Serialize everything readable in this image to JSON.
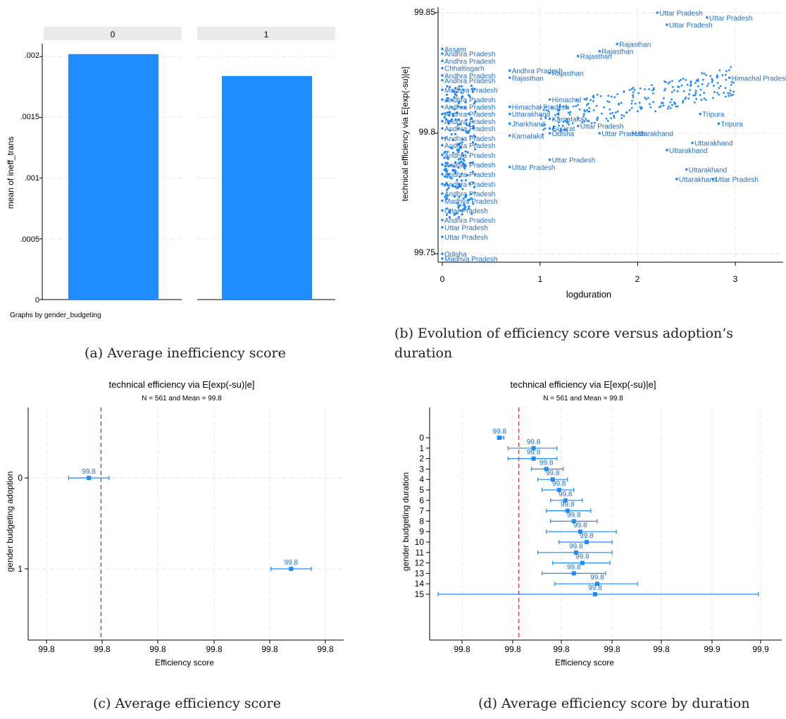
{
  "colors": {
    "bar": "#1e8bff",
    "point": "#1e8bff",
    "text": "#1f6fd6",
    "refline": "#e03030",
    "grid": "#e6e6e6",
    "axis": "#000000",
    "strip": "#ebebeb"
  },
  "captions": {
    "a": "(a) Average inefficiency score",
    "b1": "(b) Evolution of efficiency score versus adoption’s",
    "b2": "duration",
    "c": "(c) Average efficiency score",
    "d": "(d) Average efficiency score by duration"
  },
  "panel_a": {
    "ylabel": "mean of ineff_trans",
    "note": "Graphs by gender_budgeting",
    "strip_labels": [
      "0",
      "1"
    ],
    "yticks": [
      "0",
      ".0005",
      ".001",
      ".0015",
      ".002"
    ]
  },
  "panel_b": {
    "xlabel": "logduration",
    "ylabel": "technical efficiency via E[exp(-su)|e]",
    "xticks": [
      "0",
      "1",
      "2",
      "3"
    ],
    "yticks": [
      "99.75",
      "99.8",
      "99.85"
    ]
  },
  "panel_c": {
    "title": "technical efficiency via E[exp(-su)|e]",
    "subtitle": "N = 561 and Mean = 99.8",
    "xlabel": "Efficiency score",
    "ylabel": "gender budgeting adoption",
    "xticks": [
      "99.8",
      "99.8",
      "99.8",
      "99.8",
      "99.8",
      "99.8",
      "99.8",
      "99.8"
    ],
    "point_label": "99.8"
  },
  "panel_d": {
    "title": "technical efficiency via E[exp(-su)|e]",
    "subtitle": "N = 561 and Mean = 99.8",
    "xlabel": "Efficiency score",
    "ylabel": "gender budgeting duration",
    "xticks": [
      "99.8",
      "99.8",
      "99.8",
      "99.8",
      "99.8",
      "99.9",
      "99.9",
      "99.9"
    ],
    "point_label": "99.8"
  },
  "chart_data": [
    {
      "type": "bar",
      "categories": [
        "0",
        "1"
      ],
      "values": [
        0.00202,
        0.00184
      ],
      "ylabel": "mean of ineff_trans",
      "ylim": [
        0,
        0.0021
      ],
      "grid": true
    },
    {
      "type": "scatter",
      "xlabel": "logduration",
      "ylabel": "technical efficiency via E[exp(-su)|e]",
      "xlim": [
        0,
        3
      ],
      "ylim": [
        99.748,
        99.851
      ],
      "grid": true,
      "points": [
        {
          "x": 0.0,
          "y": 99.835,
          "label": "Assam"
        },
        {
          "x": 0.0,
          "y": 99.833,
          "label": "Andhra Pradesh"
        },
        {
          "x": 0.0,
          "y": 99.83,
          "label": "Andhra Pradesh"
        },
        {
          "x": 0.0,
          "y": 99.827,
          "label": "Chhattisgarh"
        },
        {
          "x": 0.0,
          "y": 99.824,
          "label": "Andhra Pradesh"
        },
        {
          "x": 0.0,
          "y": 99.822,
          "label": "Andhra Pradesh"
        },
        {
          "x": 0.0,
          "y": 99.818,
          "label": "Madhya Pradesh"
        },
        {
          "x": 0.0,
          "y": 99.814,
          "label": "Andhra Pradesh"
        },
        {
          "x": 0.0,
          "y": 99.811,
          "label": "Andhra Pradesh"
        },
        {
          "x": 0.0,
          "y": 99.808,
          "label": "Andhra Pradesh"
        },
        {
          "x": 0.0,
          "y": 99.805,
          "label": "Andhra Pradesh"
        },
        {
          "x": 0.0,
          "y": 99.802,
          "label": "Andhra Pradesh"
        },
        {
          "x": 0.0,
          "y": 99.798,
          "label": "Andhra Pradesh"
        },
        {
          "x": 0.0,
          "y": 99.795,
          "label": "Andhra Pradesh"
        },
        {
          "x": 0.0,
          "y": 99.791,
          "label": "Andhra Pradesh"
        },
        {
          "x": 0.0,
          "y": 99.787,
          "label": "Andhra Pradesh"
        },
        {
          "x": 0.0,
          "y": 99.783,
          "label": "Andhra Pradesh"
        },
        {
          "x": 0.0,
          "y": 99.779,
          "label": "Andhra Pradesh"
        },
        {
          "x": 0.0,
          "y": 99.775,
          "label": "Andhra Pradesh"
        },
        {
          "x": 0.0,
          "y": 99.772,
          "label": "Madhya Pradesh"
        },
        {
          "x": 0.0,
          "y": 99.768,
          "label": "Uttar Pradesh"
        },
        {
          "x": 0.0,
          "y": 99.764,
          "label": "Andhra Pradesh"
        },
        {
          "x": 0.0,
          "y": 99.761,
          "label": "Uttar Pradesh"
        },
        {
          "x": 0.0,
          "y": 99.757,
          "label": "Uttar Pradesh"
        },
        {
          "x": 0.0,
          "y": 99.75,
          "label": "Odisha"
        },
        {
          "x": 0.0,
          "y": 99.748,
          "label": "Madhya Pradesh"
        },
        {
          "x": 0.69,
          "y": 99.826,
          "label": "Andhra Pradesh"
        },
        {
          "x": 0.69,
          "y": 99.823,
          "label": "Rajasthan"
        },
        {
          "x": 0.69,
          "y": 99.811,
          "label": "Himachal Pradesh"
        },
        {
          "x": 0.69,
          "y": 99.808,
          "label": "Uttarakhand"
        },
        {
          "x": 0.69,
          "y": 99.804,
          "label": "Jharkhand"
        },
        {
          "x": 0.69,
          "y": 99.799,
          "label": "Karnataka"
        },
        {
          "x": 0.69,
          "y": 99.786,
          "label": "Uttar Pradesh"
        },
        {
          "x": 1.1,
          "y": 99.825,
          "label": "Rajasthan"
        },
        {
          "x": 1.1,
          "y": 99.814,
          "label": "Himachal"
        },
        {
          "x": 1.1,
          "y": 99.806,
          "label": "Karnataka"
        },
        {
          "x": 1.1,
          "y": 99.802,
          "label": "Gujarat"
        },
        {
          "x": 1.1,
          "y": 99.8,
          "label": "Odisha"
        },
        {
          "x": 1.1,
          "y": 99.789,
          "label": "Uttar Pradesh"
        },
        {
          "x": 1.39,
          "y": 99.832,
          "label": "Rajasthan"
        },
        {
          "x": 1.39,
          "y": 99.803,
          "label": "Uttar Pradesh"
        },
        {
          "x": 1.61,
          "y": 99.834,
          "label": "Rajasthan"
        },
        {
          "x": 1.61,
          "y": 99.8,
          "label": "Uttar Pradesh"
        },
        {
          "x": 1.79,
          "y": 99.837,
          "label": "Rajasthan"
        },
        {
          "x": 1.95,
          "y": 99.8,
          "label": "Uttarakhand"
        },
        {
          "x": 2.2,
          "y": 99.85,
          "label": "Uttar Pradesh"
        },
        {
          "x": 2.3,
          "y": 99.845,
          "label": "Uttar Pradesh"
        },
        {
          "x": 2.3,
          "y": 99.793,
          "label": "Uttarakhand"
        },
        {
          "x": 2.4,
          "y": 99.781,
          "label": "Uttarakhand"
        },
        {
          "x": 2.5,
          "y": 99.785,
          "label": "Uttarakhand"
        },
        {
          "x": 2.56,
          "y": 99.796,
          "label": "Uttarakhand"
        },
        {
          "x": 2.64,
          "y": 99.808,
          "label": "Tripura"
        },
        {
          "x": 2.71,
          "y": 99.848,
          "label": "Uttar Pradesh"
        },
        {
          "x": 2.77,
          "y": 99.781,
          "label": "Uttar Pradesh"
        },
        {
          "x": 2.83,
          "y": 99.804,
          "label": "Tripura"
        },
        {
          "x": 2.94,
          "y": 99.823,
          "label": "Himachal Pradesh"
        }
      ]
    },
    {
      "type": "scatter",
      "subtype": "point-with-ci",
      "title": "technical efficiency via E[exp(-su)|e]",
      "subtitle": "N = 561 and Mean = 99.8",
      "xlabel": "Efficiency score",
      "ylabel": "gender budgeting adoption",
      "categories": [
        "0",
        "1"
      ],
      "estimates": [
        99.7865,
        99.8115
      ],
      "ci_low": [
        99.784,
        99.809
      ],
      "ci_high": [
        99.789,
        99.814
      ],
      "mean_line": 99.788,
      "xlim": [
        99.779,
        99.818
      ],
      "point_labels": [
        "99.8",
        "99.8"
      ]
    },
    {
      "type": "scatter",
      "subtype": "point-with-ci",
      "title": "technical efficiency via E[exp(-su)|e]",
      "subtitle": "N = 561 and Mean = 99.8",
      "xlabel": "Efficiency score",
      "ylabel": "gender budgeting duration",
      "categories": [
        "0",
        "1",
        "2",
        "3",
        "4",
        "5",
        "6",
        "7",
        "8",
        "9",
        "10",
        "11",
        "12",
        "13",
        "14",
        "15"
      ],
      "estimates": [
        99.7835,
        99.7915,
        99.7915,
        99.7945,
        99.796,
        99.7975,
        99.799,
        99.7995,
        99.801,
        99.8025,
        99.804,
        99.8015,
        99.803,
        99.801,
        99.8065,
        99.806
      ],
      "ci_low": [
        99.783,
        99.7855,
        99.7855,
        99.791,
        99.7925,
        99.7935,
        99.7955,
        99.7945,
        99.7955,
        99.7945,
        99.7975,
        99.7925,
        99.796,
        99.7935,
        99.7965,
        99.769
      ],
      "ci_high": [
        99.7845,
        99.797,
        99.797,
        99.7985,
        99.7995,
        99.801,
        99.803,
        99.805,
        99.8065,
        99.811,
        99.81,
        99.81,
        99.8095,
        99.8085,
        99.816,
        99.8445
      ],
      "mean_line": 99.788,
      "xlim": [
        99.767,
        99.85
      ],
      "point_labels": [
        "99.8",
        "99.8",
        "99.8",
        "99.8",
        "99.8",
        "99.8",
        "99.8",
        "99.8",
        "99.8",
        "99.8",
        "99.8",
        "99.8",
        "99.8",
        "99.8",
        "99.8",
        "99.8"
      ]
    }
  ]
}
